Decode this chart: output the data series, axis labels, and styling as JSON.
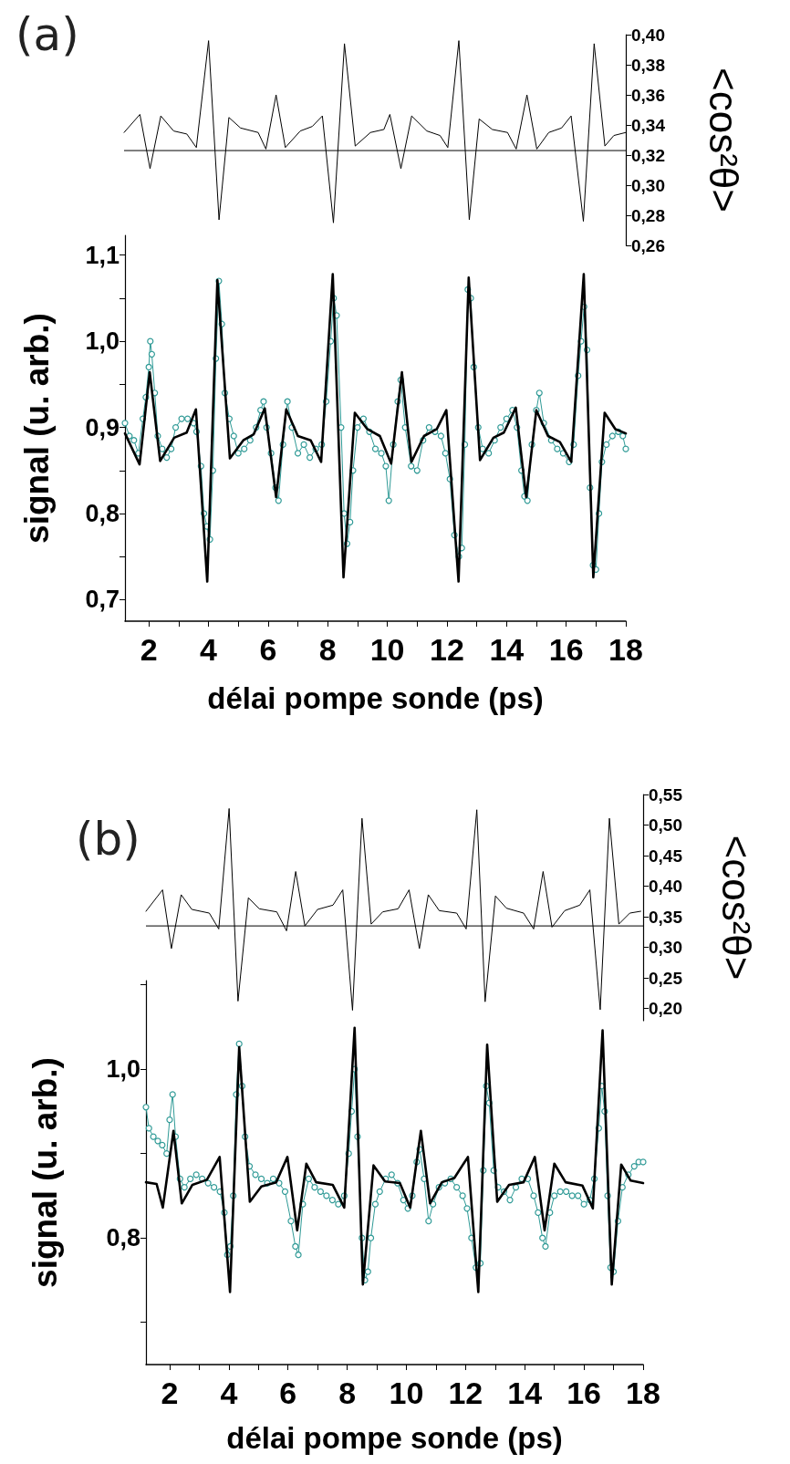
{
  "chart_data": [
    {
      "type": "line",
      "title": "(a)",
      "ylabel": "<cos²θ>",
      "xlim": [
        1.2,
        18
      ],
      "ylim": [
        0.26,
        0.4
      ],
      "tick_labels": "y",
      "marker": "none",
      "grid": false,
      "yticks": [
        {
          "value": 0.26,
          "label": "0,26"
        },
        {
          "value": 0.28,
          "label": "0,28"
        },
        {
          "value": 0.3,
          "label": "0,30"
        },
        {
          "value": 0.32,
          "label": "0,32"
        },
        {
          "value": 0.34,
          "label": "0,34"
        },
        {
          "value": 0.36,
          "label": "0,36"
        },
        {
          "value": 0.38,
          "label": "0,38"
        },
        {
          "value": 0.4,
          "label": "0,40"
        }
      ],
      "ref_lines": [
        {
          "axis": "y",
          "value": 0.323,
          "color": "#000000"
        }
      ],
      "series": [
        {
          "color": "#000000",
          "x": [
            1.2,
            1.73,
            2.07,
            2.43,
            2.86,
            3.3,
            3.62,
            4.03,
            4.38,
            4.71,
            5.1,
            5.69,
            5.95,
            6.29,
            6.6,
            7.1,
            7.5,
            7.84,
            8.21,
            8.58,
            8.94,
            9.45,
            9.9,
            10.1,
            10.47,
            10.83,
            11.34,
            11.78,
            12.04,
            12.41,
            12.76,
            13.09,
            13.53,
            14.04,
            14.33,
            14.69,
            15.02,
            15.42,
            15.85,
            16.17,
            16.58,
            16.94,
            17.3,
            17.6,
            18
          ],
          "values": [
            0.335,
            0.347,
            0.311,
            0.346,
            0.336,
            0.334,
            0.325,
            0.396,
            0.277,
            0.345,
            0.338,
            0.335,
            0.324,
            0.36,
            0.325,
            0.336,
            0.339,
            0.346,
            0.275,
            0.394,
            0.326,
            0.335,
            0.337,
            0.347,
            0.311,
            0.346,
            0.336,
            0.333,
            0.325,
            0.396,
            0.277,
            0.344,
            0.337,
            0.335,
            0.324,
            0.36,
            0.324,
            0.335,
            0.338,
            0.346,
            0.276,
            0.394,
            0.326,
            0.333,
            0.335
          ]
        }
      ]
    },
    {
      "type": "line",
      "xlabel": "délai pompe sonde (ps)",
      "ylabel": "signal (u. arb.)",
      "xlim": [
        1.2,
        18
      ],
      "ylim": [
        0.675,
        1.123
      ],
      "grid": false,
      "xticks": [
        2,
        {
          "value": 3,
          "label": null
        },
        4,
        {
          "value": 5,
          "label": null
        },
        6,
        {
          "value": 7,
          "label": null
        },
        8,
        {
          "value": 9,
          "label": null
        },
        10,
        {
          "value": 11,
          "label": null
        },
        12,
        {
          "value": 13,
          "label": null
        },
        14,
        {
          "value": 15,
          "label": null
        },
        16,
        {
          "value": 17,
          "label": null
        },
        18
      ],
      "yticks": [
        {
          "value": 0.7,
          "label": "0,7"
        },
        {
          "value": 0.75,
          "label": null
        },
        {
          "value": 0.8,
          "label": "0,8"
        },
        {
          "value": 0.85,
          "label": null
        },
        {
          "value": 0.9,
          "label": "0,9"
        },
        {
          "value": 0.95,
          "label": null
        },
        {
          "value": 1.0,
          "label": "1,0"
        },
        {
          "value": 1.05,
          "label": null
        },
        {
          "value": 1.1,
          "label": "1,1"
        }
      ],
      "series": [
        {
          "color": "#2f9a96",
          "marker": "circle",
          "x": [
            1.2,
            1.35,
            1.5,
            1.65,
            1.8,
            1.9,
            2.0,
            2.05,
            2.1,
            2.2,
            2.3,
            2.45,
            2.6,
            2.75,
            2.9,
            3.1,
            3.3,
            3.5,
            3.6,
            3.75,
            3.85,
            3.95,
            4.05,
            4.15,
            4.25,
            4.35,
            4.45,
            4.55,
            4.7,
            4.85,
            5.0,
            5.2,
            5.4,
            5.6,
            5.75,
            5.85,
            5.95,
            6.1,
            6.25,
            6.35,
            6.5,
            6.65,
            6.8,
            7.0,
            7.2,
            7.4,
            7.6,
            7.8,
            7.95,
            8.1,
            8.2,
            8.3,
            8.45,
            8.55,
            8.65,
            8.75,
            8.85,
            9.0,
            9.2,
            9.4,
            9.6,
            9.8,
            9.95,
            10.05,
            10.2,
            10.35,
            10.45,
            10.6,
            10.8,
            11.0,
            11.2,
            11.4,
            11.6,
            11.8,
            11.95,
            12.1,
            12.25,
            12.4,
            12.5,
            12.6,
            12.7,
            12.8,
            12.9,
            13.05,
            13.2,
            13.4,
            13.6,
            13.8,
            14.0,
            14.2,
            14.35,
            14.5,
            14.6,
            14.7,
            14.85,
            15.0,
            15.1,
            15.25,
            15.5,
            15.7,
            15.9,
            16.1,
            16.25,
            16.4,
            16.5,
            16.6,
            16.7,
            16.8,
            16.9,
            17.0,
            17.1,
            17.2,
            17.35,
            17.55,
            17.75,
            17.9,
            18.0
          ],
          "values": [
            0.905,
            0.89,
            0.885,
            0.87,
            0.91,
            0.935,
            0.97,
            1.0,
            0.985,
            0.94,
            0.89,
            0.875,
            0.865,
            0.875,
            0.9,
            0.91,
            0.91,
            0.905,
            0.895,
            0.855,
            0.8,
            0.785,
            0.77,
            0.85,
            0.98,
            1.07,
            1.02,
            0.94,
            0.91,
            0.89,
            0.87,
            0.875,
            0.885,
            0.9,
            0.92,
            0.93,
            0.9,
            0.87,
            0.83,
            0.815,
            0.88,
            0.93,
            0.9,
            0.87,
            0.88,
            0.865,
            0.875,
            0.88,
            0.93,
            1.0,
            1.05,
            1.03,
            0.9,
            0.8,
            0.765,
            0.79,
            0.85,
            0.9,
            0.91,
            0.895,
            0.875,
            0.87,
            0.855,
            0.815,
            0.88,
            0.93,
            0.955,
            0.9,
            0.855,
            0.85,
            0.885,
            0.9,
            0.895,
            0.89,
            0.87,
            0.84,
            0.775,
            0.75,
            0.76,
            0.88,
            1.06,
            1.05,
            0.97,
            0.9,
            0.875,
            0.87,
            0.885,
            0.9,
            0.91,
            0.92,
            0.9,
            0.85,
            0.82,
            0.815,
            0.88,
            0.92,
            0.94,
            0.905,
            0.885,
            0.875,
            0.87,
            0.86,
            0.88,
            0.96,
            1.0,
            1.04,
            0.99,
            0.83,
            0.74,
            0.735,
            0.8,
            0.86,
            0.88,
            0.89,
            0.895,
            0.89,
            0.875
          ]
        },
        {
          "color": "#000000",
          "marker": "none",
          "x": [
            1.2,
            1.69,
            2.03,
            2.38,
            2.85,
            3.27,
            3.58,
            3.96,
            4.3,
            4.72,
            5.17,
            5.52,
            5.89,
            6.27,
            6.61,
            7.0,
            7.43,
            7.78,
            8.17,
            8.53,
            8.91,
            9.33,
            9.75,
            10.13,
            10.49,
            10.81,
            11.23,
            11.66,
            11.98,
            12.39,
            12.73,
            13.11,
            13.56,
            13.91,
            14.31,
            14.66,
            15.0,
            15.39,
            15.79,
            16.17,
            16.59,
            16.91,
            17.29,
            17.65,
            18
          ],
          "values": [
            0.893,
            0.857,
            0.964,
            0.861,
            0.888,
            0.894,
            0.921,
            0.721,
            1.071,
            0.864,
            0.885,
            0.892,
            0.922,
            0.819,
            0.921,
            0.89,
            0.885,
            0.86,
            1.078,
            0.726,
            0.917,
            0.898,
            0.89,
            0.858,
            0.964,
            0.86,
            0.89,
            0.898,
            0.92,
            0.721,
            1.074,
            0.862,
            0.888,
            0.894,
            0.923,
            0.819,
            0.92,
            0.89,
            0.883,
            0.86,
            1.078,
            0.726,
            0.917,
            0.898,
            0.893
          ]
        }
      ]
    },
    {
      "type": "line",
      "title": "(b)",
      "ylabel": "<cos²θ>",
      "xlim": [
        1.2,
        18
      ],
      "ylim": [
        0.18,
        0.55
      ],
      "tick_labels": "y",
      "marker": "none",
      "grid": false,
      "yticks": [
        {
          "value": 0.2,
          "label": "0,20"
        },
        {
          "value": 0.25,
          "label": "0,25"
        },
        {
          "value": 0.3,
          "label": "0,30"
        },
        {
          "value": 0.35,
          "label": "0,35"
        },
        {
          "value": 0.4,
          "label": "0,40"
        },
        {
          "value": 0.45,
          "label": "0,45"
        },
        {
          "value": 0.5,
          "label": "0,50"
        },
        {
          "value": 0.55,
          "label": "0,55"
        }
      ],
      "ref_lines": [
        {
          "axis": "y",
          "value": 0.335,
          "color": "#000000"
        }
      ],
      "series": [
        {
          "color": "#000000",
          "x": [
            1.2,
            1.76,
            2.06,
            2.39,
            2.75,
            3.34,
            3.66,
            4.01,
            4.31,
            4.66,
            5.03,
            5.62,
            5.95,
            6.26,
            6.57,
            7.0,
            7.52,
            7.85,
            8.18,
            8.5,
            8.81,
            9.2,
            9.72,
            10.09,
            10.44,
            10.74,
            11.11,
            11.7,
            12.02,
            12.38,
            12.66,
            13.01,
            13.38,
            13.96,
            14.3,
            14.62,
            14.92,
            15.35,
            15.86,
            16.2,
            16.55,
            16.86,
            17.18,
            17.55,
            17.92
          ],
          "values": [
            0.359,
            0.394,
            0.298,
            0.386,
            0.362,
            0.356,
            0.33,
            0.527,
            0.212,
            0.381,
            0.363,
            0.358,
            0.327,
            0.424,
            0.335,
            0.362,
            0.369,
            0.394,
            0.197,
            0.511,
            0.338,
            0.358,
            0.363,
            0.394,
            0.298,
            0.386,
            0.36,
            0.356,
            0.33,
            0.525,
            0.211,
            0.384,
            0.364,
            0.356,
            0.33,
            0.424,
            0.333,
            0.36,
            0.369,
            0.394,
            0.198,
            0.511,
            0.338,
            0.356,
            0.359
          ]
        }
      ]
    },
    {
      "type": "line",
      "xlabel": "délai pompe sonde (ps)",
      "ylabel": "signal (u. arb.)",
      "xlim": [
        1.2,
        18
      ],
      "ylim": [
        0.65,
        1.105
      ],
      "grid": false,
      "xticks": [
        2,
        {
          "value": 3,
          "label": null
        },
        4,
        {
          "value": 5,
          "label": null
        },
        6,
        {
          "value": 7,
          "label": null
        },
        8,
        {
          "value": 9,
          "label": null
        },
        10,
        {
          "value": 11,
          "label": null
        },
        12,
        {
          "value": 13,
          "label": null
        },
        14,
        {
          "value": 15,
          "label": null
        },
        16,
        {
          "value": 17,
          "label": null
        },
        18
      ],
      "yticks": [
        {
          "value": 0.7,
          "label": null
        },
        {
          "value": 0.8,
          "label": "0,8"
        },
        {
          "value": 0.9,
          "label": null
        },
        {
          "value": 1.0,
          "label": "1,0"
        },
        {
          "value": 1.1,
          "label": null
        }
      ],
      "series": [
        {
          "color": "#2f9a96",
          "marker": "circle",
          "x": [
            1.2,
            1.3,
            1.45,
            1.6,
            1.75,
            1.9,
            2.0,
            2.1,
            2.2,
            2.35,
            2.5,
            2.7,
            2.9,
            3.1,
            3.3,
            3.5,
            3.7,
            3.85,
            3.95,
            4.05,
            4.15,
            4.25,
            4.35,
            4.45,
            4.55,
            4.7,
            4.9,
            5.1,
            5.3,
            5.5,
            5.7,
            5.9,
            6.1,
            6.25,
            6.35,
            6.5,
            6.7,
            6.9,
            7.1,
            7.3,
            7.5,
            7.7,
            7.9,
            8.05,
            8.15,
            8.25,
            8.35,
            8.5,
            8.6,
            8.7,
            8.8,
            8.95,
            9.1,
            9.3,
            9.5,
            9.7,
            9.9,
            10.05,
            10.2,
            10.35,
            10.45,
            10.6,
            10.75,
            10.9,
            11.1,
            11.3,
            11.5,
            11.7,
            11.9,
            12.05,
            12.2,
            12.35,
            12.5,
            12.6,
            12.7,
            12.8,
            12.95,
            13.1,
            13.3,
            13.5,
            13.7,
            13.9,
            14.1,
            14.3,
            14.45,
            14.6,
            14.7,
            14.85,
            15.0,
            15.2,
            15.4,
            15.6,
            15.8,
            16.0,
            16.2,
            16.35,
            16.5,
            16.6,
            16.7,
            16.8,
            16.9,
            17.0,
            17.15,
            17.3,
            17.5,
            17.7,
            17.85,
            18.0
          ],
          "values": [
            0.955,
            0.93,
            0.92,
            0.915,
            0.91,
            0.9,
            0.94,
            0.97,
            0.92,
            0.87,
            0.86,
            0.87,
            0.875,
            0.87,
            0.865,
            0.86,
            0.855,
            0.83,
            0.78,
            0.79,
            0.85,
            0.97,
            1.03,
            0.98,
            0.92,
            0.885,
            0.875,
            0.87,
            0.865,
            0.87,
            0.865,
            0.855,
            0.82,
            0.79,
            0.78,
            0.84,
            0.87,
            0.86,
            0.855,
            0.85,
            0.845,
            0.84,
            0.85,
            0.9,
            0.95,
            1.0,
            0.92,
            0.8,
            0.75,
            0.76,
            0.8,
            0.84,
            0.855,
            0.87,
            0.875,
            0.865,
            0.845,
            0.835,
            0.85,
            0.89,
            0.905,
            0.87,
            0.82,
            0.84,
            0.86,
            0.865,
            0.87,
            0.86,
            0.85,
            0.835,
            0.8,
            0.765,
            0.77,
            0.88,
            0.98,
            0.96,
            0.88,
            0.86,
            0.855,
            0.845,
            0.86,
            0.87,
            0.87,
            0.85,
            0.83,
            0.8,
            0.79,
            0.83,
            0.85,
            0.855,
            0.855,
            0.85,
            0.85,
            0.84,
            0.845,
            0.87,
            0.93,
            0.98,
            0.95,
            0.85,
            0.765,
            0.76,
            0.82,
            0.86,
            0.875,
            0.885,
            0.89,
            0.89
          ]
        },
        {
          "color": "#000000",
          "marker": "none",
          "x": [
            1.2,
            1.56,
            1.77,
            2.13,
            2.41,
            2.77,
            3.26,
            3.69,
            4.04,
            4.35,
            4.71,
            5.1,
            5.6,
            5.98,
            6.31,
            6.62,
            6.95,
            7.51,
            7.9,
            8.25,
            8.53,
            8.89,
            9.28,
            9.78,
            10.13,
            10.49,
            10.8,
            11.2,
            11.62,
            12.08,
            12.43,
            12.73,
            13.07,
            13.47,
            13.96,
            14.34,
            14.67,
            15.0,
            15.38,
            15.95,
            16.3,
            16.63,
            16.94,
            17.26,
            17.58,
            18
          ],
          "values": [
            0.866,
            0.864,
            0.836,
            0.927,
            0.841,
            0.863,
            0.869,
            0.896,
            0.736,
            1.026,
            0.843,
            0.861,
            0.866,
            0.896,
            0.809,
            0.888,
            0.866,
            0.863,
            0.836,
            1.049,
            0.745,
            0.886,
            0.867,
            0.865,
            0.836,
            0.927,
            0.841,
            0.866,
            0.871,
            0.896,
            0.736,
            1.029,
            0.843,
            0.863,
            0.866,
            0.896,
            0.809,
            0.888,
            0.866,
            0.862,
            0.835,
            1.046,
            0.745,
            0.887,
            0.868,
            0.865
          ]
        }
      ]
    }
  ]
}
